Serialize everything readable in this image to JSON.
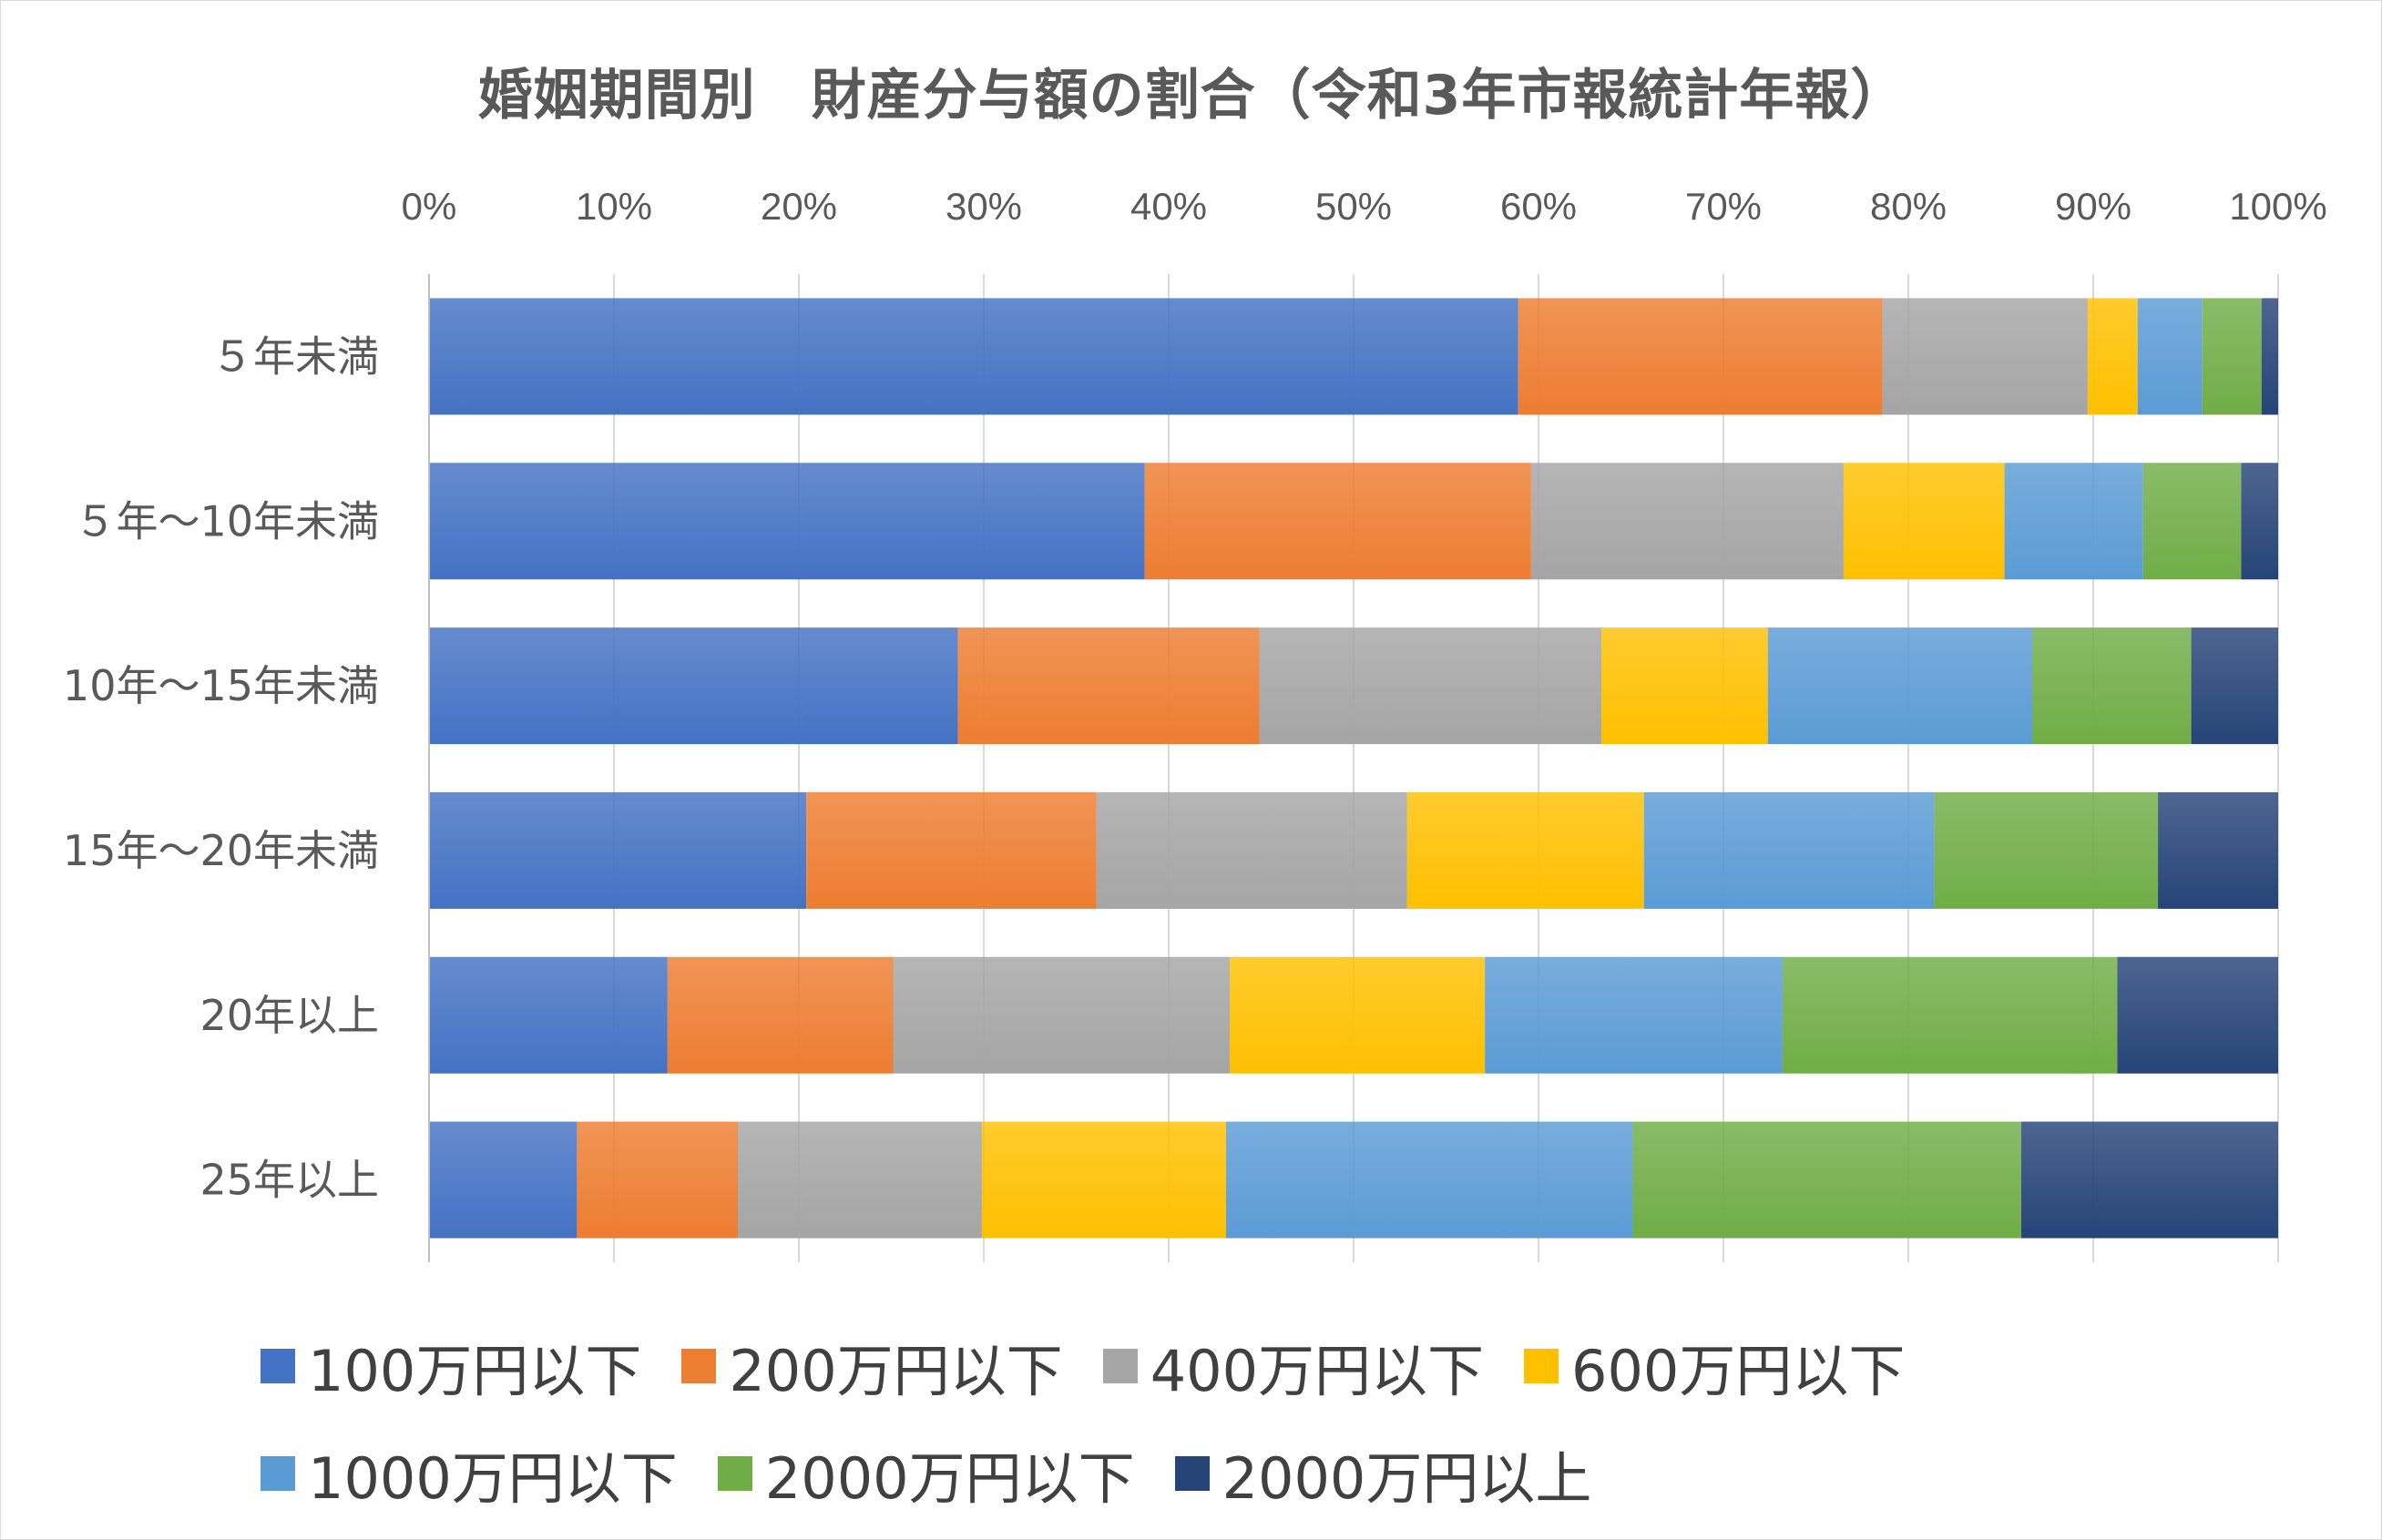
{
  "chart_data": {
    "type": "bar",
    "orientation": "horizontal",
    "stacked": "percent",
    "title": "婚姻期間別　財産分与額の割合（令和3年市報統計年報）",
    "categories": [
      "５年未満",
      "５年～10年未満",
      "10年～15年未満",
      "15年～20年未満",
      "20年以上",
      "25年以上"
    ],
    "xticks": [
      "0%",
      "10%",
      "20%",
      "30%",
      "40%",
      "50%",
      "60%",
      "70%",
      "80%",
      "90%",
      "100%"
    ],
    "xlim": [
      0,
      100
    ],
    "grid": true,
    "legend_position": "bottom",
    "series": [
      {
        "name": "100万円以下",
        "color": "#4472c4",
        "values": [
          58.9,
          38.7,
          28.6,
          20.4,
          12.9,
          8.0
        ]
      },
      {
        "name": "200万円以下",
        "color": "#ed7d31",
        "values": [
          19.7,
          20.9,
          16.3,
          15.7,
          12.2,
          8.7
        ]
      },
      {
        "name": "400万円以下",
        "color": "#a5a5a5",
        "values": [
          11.1,
          16.9,
          18.5,
          16.8,
          18.2,
          13.2
        ]
      },
      {
        "name": "600万円以下",
        "color": "#ffc000",
        "values": [
          2.7,
          8.7,
          9.0,
          12.8,
          13.8,
          13.2
        ]
      },
      {
        "name": "1000万円以下",
        "color": "#5b9bd5",
        "values": [
          3.5,
          7.5,
          14.3,
          15.7,
          16.1,
          22.0
        ]
      },
      {
        "name": "2000万円以下",
        "color": "#70ad47",
        "values": [
          3.2,
          5.3,
          8.6,
          12.1,
          18.1,
          21.0
        ]
      },
      {
        "name": "2000万円以上",
        "color": "#264478",
        "values": [
          0.9,
          2.0,
          4.7,
          6.5,
          8.7,
          13.9
        ]
      }
    ]
  }
}
